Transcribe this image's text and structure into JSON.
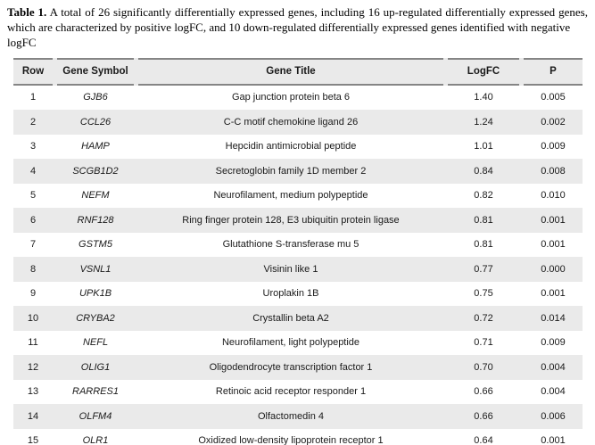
{
  "caption": {
    "label": "Table 1.",
    "line1": "A total of 26 significantly differentially expressed genes, including 16 up-regulated differentially expressed genes,",
    "line2": "which are characterized by positive logFC, and 10 down-regulated differentially expressed genes identified with negative logFC"
  },
  "table": {
    "headers": [
      "Row",
      "Gene Symbol",
      "Gene Title",
      "LogFC",
      "P"
    ],
    "rows": [
      {
        "row": "1",
        "symbol": "GJB6",
        "title": "Gap junction protein beta 6",
        "logfc": "1.40",
        "p": "0.005"
      },
      {
        "row": "2",
        "symbol": "CCL26",
        "title": "C-C motif chemokine ligand 26",
        "logfc": "1.24",
        "p": "0.002"
      },
      {
        "row": "3",
        "symbol": "HAMP",
        "title": "Hepcidin antimicrobial peptide",
        "logfc": "1.01",
        "p": "0.009"
      },
      {
        "row": "4",
        "symbol": "SCGB1D2",
        "title": "Secretoglobin family 1D member 2",
        "logfc": "0.84",
        "p": "0.008"
      },
      {
        "row": "5",
        "symbol": "NEFM",
        "title": "Neurofilament, medium polypeptide",
        "logfc": "0.82",
        "p": "0.010"
      },
      {
        "row": "6",
        "symbol": "RNF128",
        "title": "Ring finger protein 128, E3 ubiquitin protein ligase",
        "logfc": "0.81",
        "p": "0.001"
      },
      {
        "row": "7",
        "symbol": "GSTM5",
        "title": "Glutathione S-transferase mu 5",
        "logfc": "0.81",
        "p": "0.001"
      },
      {
        "row": "8",
        "symbol": "VSNL1",
        "title": "Visinin like 1",
        "logfc": "0.77",
        "p": "0.000"
      },
      {
        "row": "9",
        "symbol": "UPK1B",
        "title": "Uroplakin 1B",
        "logfc": "0.75",
        "p": "0.001"
      },
      {
        "row": "10",
        "symbol": "CRYBA2",
        "title": "Crystallin beta A2",
        "logfc": "0.72",
        "p": "0.014"
      },
      {
        "row": "11",
        "symbol": "NEFL",
        "title": "Neurofilament, light polypeptide",
        "logfc": "0.71",
        "p": "0.009"
      },
      {
        "row": "12",
        "symbol": "OLIG1",
        "title": "Oligodendrocyte transcription factor 1",
        "logfc": "0.70",
        "p": "0.004"
      },
      {
        "row": "13",
        "symbol": "RARRES1",
        "title": "Retinoic acid receptor responder 1",
        "logfc": "0.66",
        "p": "0.004"
      },
      {
        "row": "14",
        "symbol": "OLFM4",
        "title": "Olfactomedin 4",
        "logfc": "0.66",
        "p": "0.006"
      },
      {
        "row": "15",
        "symbol": "OLR1",
        "title": "Oxidized low-density lipoprotein receptor 1",
        "logfc": "0.64",
        "p": "0.001"
      }
    ]
  },
  "colors": {
    "stripe": "#eaeaea",
    "rule": "#858585",
    "text": "#1a1a1a"
  }
}
